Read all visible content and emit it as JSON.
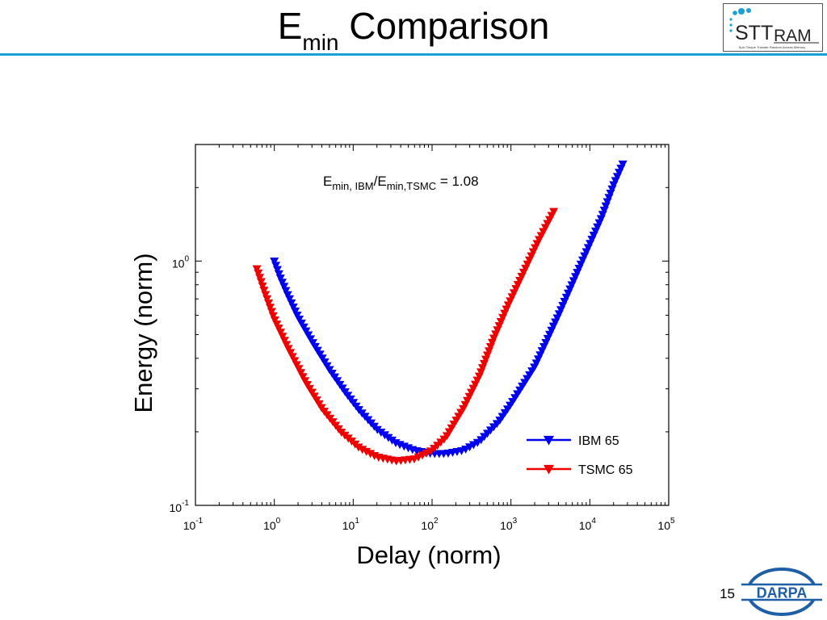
{
  "slide": {
    "title_main": "E",
    "title_sub": "min",
    "title_rest": " Comparison",
    "page_number": "15"
  },
  "logos": {
    "stt": {
      "text_a": "STT",
      "text_b": "RAM",
      "tagline": "Spin Torque Transfer Random Access Memory",
      "color": "#1a9fd6"
    },
    "darpa": {
      "text": "DARPA",
      "color": "#1f5fa8"
    }
  },
  "chart_data": {
    "type": "line",
    "xlabel": "Delay (norm)",
    "ylabel": "Energy (norm)",
    "xscale": "log",
    "yscale": "log",
    "xlim": [
      0.1,
      100000
    ],
    "ylim": [
      0.1,
      3.0
    ],
    "x_ticks": [
      {
        "value": 0.1,
        "base": "10",
        "exp": "-1"
      },
      {
        "value": 1,
        "base": "10",
        "exp": "0"
      },
      {
        "value": 10,
        "base": "10",
        "exp": "1"
      },
      {
        "value": 100,
        "base": "10",
        "exp": "2"
      },
      {
        "value": 1000,
        "base": "10",
        "exp": "3"
      },
      {
        "value": 10000,
        "base": "10",
        "exp": "4"
      },
      {
        "value": 100000,
        "base": "10",
        "exp": "5"
      }
    ],
    "y_ticks": [
      {
        "value": 0.1,
        "base": "10",
        "exp": "-1"
      },
      {
        "value": 1,
        "base": "10",
        "exp": "0"
      }
    ],
    "annotation": {
      "parts": [
        {
          "t": "E",
          "sub": false
        },
        {
          "t": "min, IBM",
          "sub": true
        },
        {
          "t": "/E",
          "sub": false
        },
        {
          "t": "min,TSMC",
          "sub": true
        },
        {
          "t": " = 1.08",
          "sub": false
        }
      ]
    },
    "legend_position": "lower-right",
    "marker": "triangle-down",
    "series": [
      {
        "name": "IBM 65",
        "color": "#0000ee",
        "points": [
          [
            1.0,
            1.0
          ],
          [
            1.2,
            0.85
          ],
          [
            1.5,
            0.72
          ],
          [
            2,
            0.59
          ],
          [
            3,
            0.47
          ],
          [
            5,
            0.36
          ],
          [
            8,
            0.29
          ],
          [
            12,
            0.245
          ],
          [
            20,
            0.205
          ],
          [
            35,
            0.18
          ],
          [
            60,
            0.168
          ],
          [
            100,
            0.163
          ],
          [
            150,
            0.163
          ],
          [
            250,
            0.168
          ],
          [
            400,
            0.183
          ],
          [
            700,
            0.22
          ],
          [
            1000,
            0.26
          ],
          [
            2000,
            0.37
          ],
          [
            4000,
            0.6
          ],
          [
            8000,
            1.0
          ],
          [
            14000,
            1.5
          ],
          [
            20000,
            2.05
          ],
          [
            27000,
            2.55
          ]
        ]
      },
      {
        "name": "TSMC 65",
        "color": "#ee0000",
        "points": [
          [
            0.6,
            0.93
          ],
          [
            0.75,
            0.75
          ],
          [
            1.0,
            0.58
          ],
          [
            1.5,
            0.44
          ],
          [
            2.5,
            0.32
          ],
          [
            4,
            0.25
          ],
          [
            7,
            0.2
          ],
          [
            12,
            0.172
          ],
          [
            20,
            0.158
          ],
          [
            35,
            0.152
          ],
          [
            60,
            0.155
          ],
          [
            100,
            0.168
          ],
          [
            150,
            0.19
          ],
          [
            250,
            0.25
          ],
          [
            400,
            0.34
          ],
          [
            600,
            0.48
          ],
          [
            900,
            0.65
          ],
          [
            1400,
            0.88
          ],
          [
            2200,
            1.2
          ],
          [
            3500,
            1.6
          ]
        ]
      }
    ]
  }
}
